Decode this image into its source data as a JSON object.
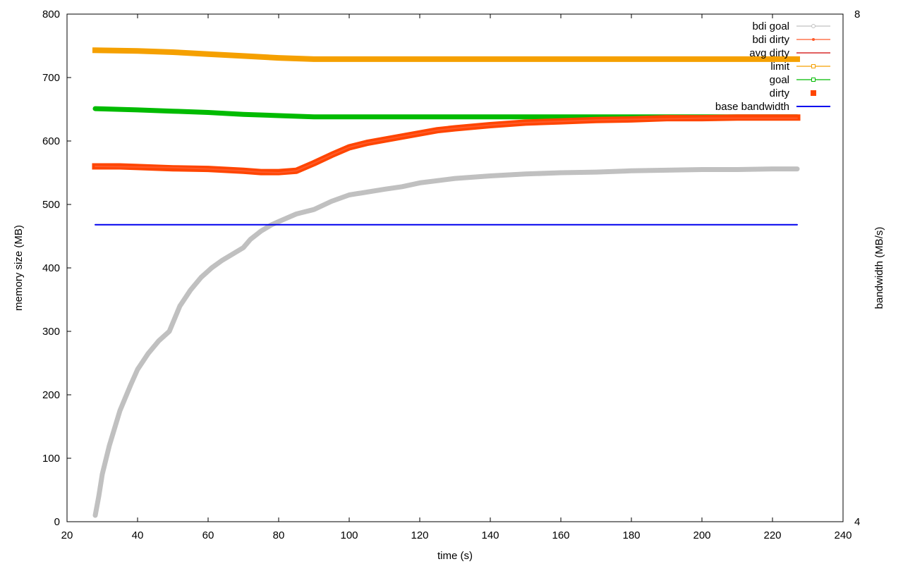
{
  "chart_data": {
    "type": "line",
    "xlabel": "time (s)",
    "ylabel": "memory size (MB)",
    "y2label": "bandwidth (MB/s)",
    "xlim": [
      20,
      240
    ],
    "ylim": [
      0,
      800
    ],
    "y2lim": [
      4,
      8
    ],
    "x_ticks": [
      "20",
      "40",
      "60",
      "80",
      "100",
      "120",
      "140",
      "160",
      "180",
      "200",
      "220",
      "240"
    ],
    "y_ticks": [
      "0",
      "100",
      "200",
      "300",
      "400",
      "500",
      "600",
      "700",
      "800"
    ],
    "y2_ticks": [
      "4",
      "8"
    ],
    "grid": false,
    "legend_position": "top-right",
    "series": [
      {
        "name": "bdi goal",
        "color": "#c0c0c0",
        "x": [
          28,
          29,
          30,
          32,
          35,
          38,
          40,
          43,
          46,
          49,
          52,
          55,
          58,
          61,
          64,
          67,
          70,
          72,
          75,
          78,
          80,
          85,
          90,
          95,
          100,
          110,
          115,
          120,
          130,
          140,
          150,
          160,
          170,
          180,
          190,
          200,
          210,
          220,
          227
        ],
        "y": [
          10,
          40,
          75,
          120,
          175,
          215,
          240,
          265,
          285,
          300,
          340,
          365,
          385,
          400,
          412,
          422,
          432,
          445,
          458,
          468,
          473,
          485,
          492,
          505,
          515,
          524,
          528,
          534,
          541,
          545,
          548,
          550,
          551,
          553,
          554,
          555,
          555,
          556,
          556
        ]
      },
      {
        "name": "bdi dirty",
        "color": "#ff5a2a",
        "x": [
          28,
          40,
          50,
          60,
          70,
          75,
          80,
          85,
          90,
          95,
          100,
          105,
          110,
          115,
          120,
          125,
          130,
          140,
          150,
          160,
          170,
          180,
          190,
          200,
          210,
          220,
          227
        ],
        "y": [
          560,
          559,
          558,
          556,
          553,
          551,
          550,
          553,
          565,
          578,
          590,
          597,
          602,
          607,
          612,
          617,
          620,
          625,
          629,
          631,
          633,
          634,
          635,
          636,
          636,
          636,
          636
        ]
      },
      {
        "name": "avg dirty",
        "color": "#d00000",
        "x": [],
        "y": []
      },
      {
        "name": "limit",
        "color": "#f5a000",
        "x": [
          28,
          40,
          50,
          60,
          70,
          80,
          90,
          95,
          100,
          120,
          150,
          180,
          200,
          227
        ],
        "y": [
          743,
          742,
          740,
          737,
          734,
          731,
          729,
          729,
          729,
          729,
          729,
          729,
          729,
          729
        ]
      },
      {
        "name": "goal",
        "color": "#00bb00",
        "x": [
          28,
          40,
          50,
          60,
          70,
          80,
          90,
          95,
          100,
          120,
          150,
          180,
          200,
          227
        ],
        "y": [
          651,
          649,
          647,
          645,
          642,
          640,
          638,
          638,
          638,
          638,
          638,
          638,
          638,
          638
        ]
      },
      {
        "name": "dirty",
        "color": "#ff4500",
        "x": [
          28,
          35,
          40,
          50,
          60,
          70,
          75,
          80,
          85,
          90,
          95,
          100,
          105,
          110,
          115,
          120,
          125,
          130,
          140,
          150,
          160,
          170,
          180,
          190,
          200,
          210,
          220,
          227
        ],
        "y": [
          560,
          560,
          559,
          557,
          556,
          553,
          551,
          551,
          553,
          565,
          578,
          590,
          597,
          602,
          607,
          612,
          617,
          620,
          625,
          629,
          631,
          633,
          634,
          636,
          636,
          637,
          637,
          637
        ]
      },
      {
        "name": "base bandwidth",
        "color": "#0000ee",
        "x": [
          28,
          227
        ],
        "y": [
          468,
          468
        ]
      }
    ]
  }
}
